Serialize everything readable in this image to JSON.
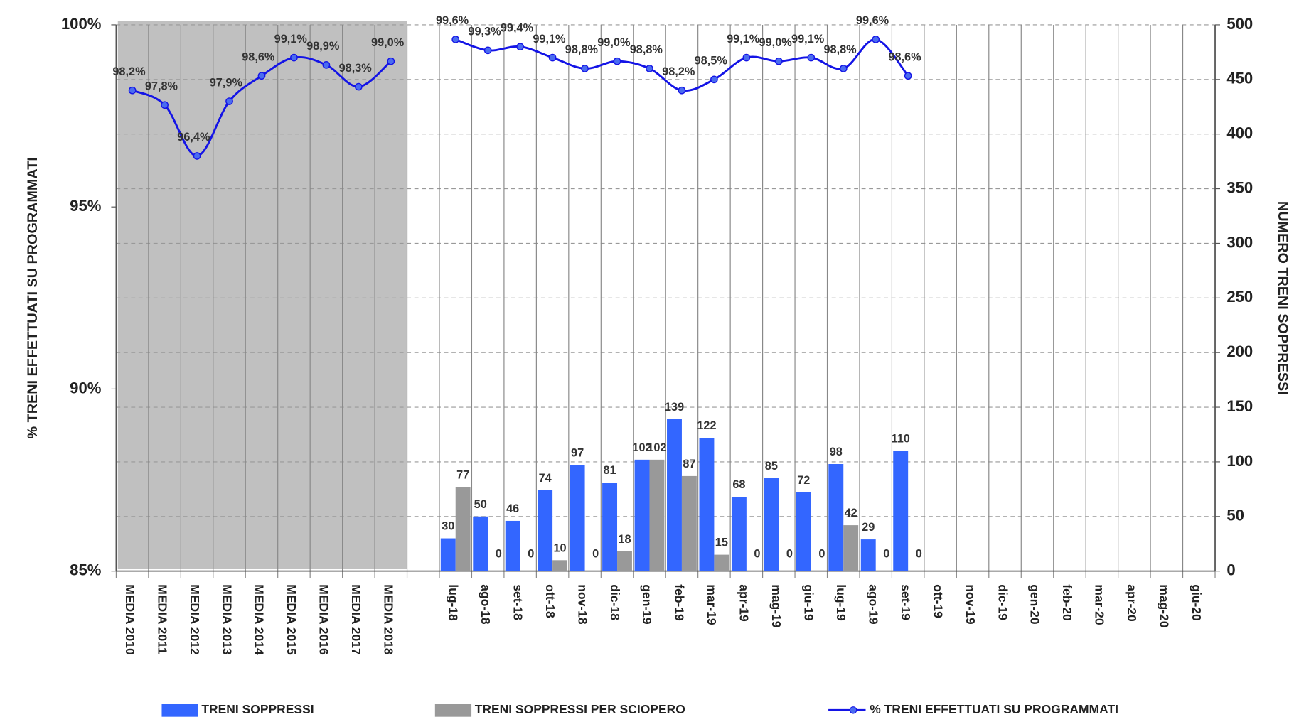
{
  "chart_data": {
    "type": "bar",
    "categories": [
      "MEDIA 2010",
      "MEDIA 2011",
      "MEDIA 2012",
      "MEDIA 2013",
      "MEDIA 2014",
      "MEDIA 2015",
      "MEDIA 2016",
      "MEDIA 2017",
      "MEDIA 2018",
      null,
      "lug-18",
      "ago-18",
      "set-18",
      "ott-18",
      "nov-18",
      "dic-18",
      "gen-19",
      "feb-19",
      "mar-19",
      "apr-19",
      "mag-19",
      "giu-19",
      "lug-19",
      "ago-19",
      "set-19",
      "ott-19",
      "nov-19",
      "dic-19",
      "gen-20",
      "feb-20",
      "mar-20",
      "apr-20",
      "mag-20",
      "giu-20"
    ],
    "series": [
      {
        "name": "TRENI SOPPRESSI",
        "type": "bar",
        "axis": "y2",
        "color": "#3366ff",
        "values": [
          null,
          null,
          null,
          null,
          null,
          null,
          null,
          null,
          null,
          null,
          30,
          50,
          46,
          74,
          97,
          81,
          102,
          139,
          122,
          68,
          85,
          72,
          98,
          29,
          110,
          null,
          null,
          null,
          null,
          null,
          null,
          null,
          null,
          null
        ]
      },
      {
        "name": "TRENI SOPPRESSI PER SCIOPERO",
        "type": "bar",
        "axis": "y2",
        "color": "#999999",
        "values": [
          null,
          null,
          null,
          null,
          null,
          null,
          null,
          null,
          null,
          null,
          77,
          0,
          0,
          10,
          0,
          18,
          102,
          87,
          15,
          0,
          0,
          0,
          42,
          0,
          0,
          null,
          null,
          null,
          null,
          null,
          null,
          null,
          null,
          null
        ]
      },
      {
        "name": "% TRENI EFFETTUATI SU PROGRAMMATI",
        "type": "line",
        "axis": "y",
        "color": "#1414e6",
        "values": [
          98.2,
          97.8,
          96.4,
          97.9,
          98.6,
          99.1,
          98.9,
          98.3,
          99.0,
          null,
          99.6,
          99.3,
          99.4,
          99.1,
          98.8,
          99.0,
          98.8,
          98.2,
          98.5,
          99.1,
          99.0,
          99.1,
          98.8,
          99.6,
          98.6,
          null,
          null,
          null,
          null,
          null,
          null,
          null,
          null,
          null
        ],
        "value_labels": [
          "98,2%",
          "97,8%",
          "96,4%",
          "97,9%",
          "98,6%",
          "99,1%",
          "98,9%",
          "98,3%",
          "99,0%",
          null,
          "99,6%",
          "99,3%",
          "99,4%",
          "99,1%",
          "98,8%",
          "99,0%",
          "98,8%",
          "98,2%",
          "98,5%",
          "99,1%",
          "99,0%",
          "99,1%",
          "98,8%",
          "99,6%",
          "98,6%",
          null,
          null,
          null,
          null,
          null,
          null,
          null,
          null,
          null
        ]
      }
    ],
    "ylabel": "% TRENI EFFETTUATI SU PROGRAMMATI",
    "y2label": "NUMERO TRENI SOPPRESSI",
    "ylim": [
      85,
      100
    ],
    "yticks": [
      {
        "value": 85,
        "label": "85%"
      },
      {
        "value": 90,
        "label": "90%"
      },
      {
        "value": 95,
        "label": "95%"
      },
      {
        "value": 100,
        "label": "100%"
      }
    ],
    "y2lim": [
      0,
      500
    ],
    "y2ticks": [
      0,
      50,
      100,
      150,
      200,
      250,
      300,
      350,
      400,
      450,
      500
    ],
    "grid": true,
    "legend": "bottom"
  }
}
